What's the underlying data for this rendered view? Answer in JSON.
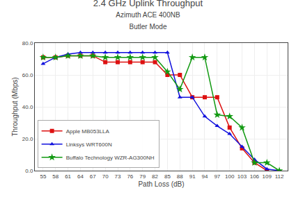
{
  "chart_data": {
    "type": "line",
    "title": "2.4 GHz Uplink Throughput",
    "subtitle": [
      "Azimuth ACE 400NB",
      "Butler Mode"
    ],
    "x_label": "Path Loss (dB)",
    "y_label": "Throughput (Mbps)",
    "xlim": [
      53,
      114
    ],
    "xticks": [
      55,
      58,
      61,
      64,
      67,
      70,
      73,
      76,
      79,
      82,
      85,
      88,
      91,
      94,
      97,
      100,
      103,
      106,
      109,
      112
    ],
    "ylim": [
      0,
      80
    ],
    "yticks": [
      {
        "value": 0,
        "label": "0.0"
      },
      {
        "value": 20,
        "label": "20.0"
      },
      {
        "value": 40,
        "label": "40.0"
      },
      {
        "value": 60,
        "label": "60.0"
      },
      {
        "value": 80,
        "label": "80.0"
      }
    ],
    "grid": true,
    "legend": "lower left",
    "series": [
      {
        "name": "Apple MB053LLA",
        "color": "#dd1111",
        "marker": "square",
        "x": [
          55,
          58,
          61,
          64,
          67,
          70,
          73,
          76,
          79,
          82,
          85,
          88,
          91,
          94,
          97,
          100,
          103,
          106,
          109
        ],
        "values": [
          71,
          71,
          72,
          72,
          72,
          68,
          68,
          68,
          68,
          68,
          60,
          60,
          46,
          46,
          46,
          27,
          14,
          5,
          0
        ]
      },
      {
        "name": "Linksys WRT600N",
        "color": "#1111dd",
        "marker": "triangle",
        "x": [
          55,
          58,
          61,
          64,
          67,
          70,
          73,
          76,
          79,
          82,
          85,
          88,
          91,
          94,
          97,
          100,
          103,
          106,
          109,
          112
        ],
        "values": [
          67,
          71,
          73,
          74,
          74,
          74,
          74,
          74,
          74,
          74,
          74,
          46,
          46,
          34,
          28,
          23,
          15,
          7,
          1,
          0
        ]
      },
      {
        "name": "Buffalo Technology WZR-AG300NH",
        "color": "#119911",
        "marker": "star",
        "x": [
          55,
          58,
          61,
          64,
          67,
          70,
          73,
          76,
          79,
          82,
          85,
          88,
          91,
          94,
          97,
          100,
          103,
          106,
          109,
          112
        ],
        "values": [
          71,
          71,
          72,
          72,
          72,
          71,
          71,
          71,
          71,
          71,
          62,
          51,
          71,
          71,
          35,
          34,
          27,
          5,
          5,
          0
        ]
      }
    ]
  }
}
